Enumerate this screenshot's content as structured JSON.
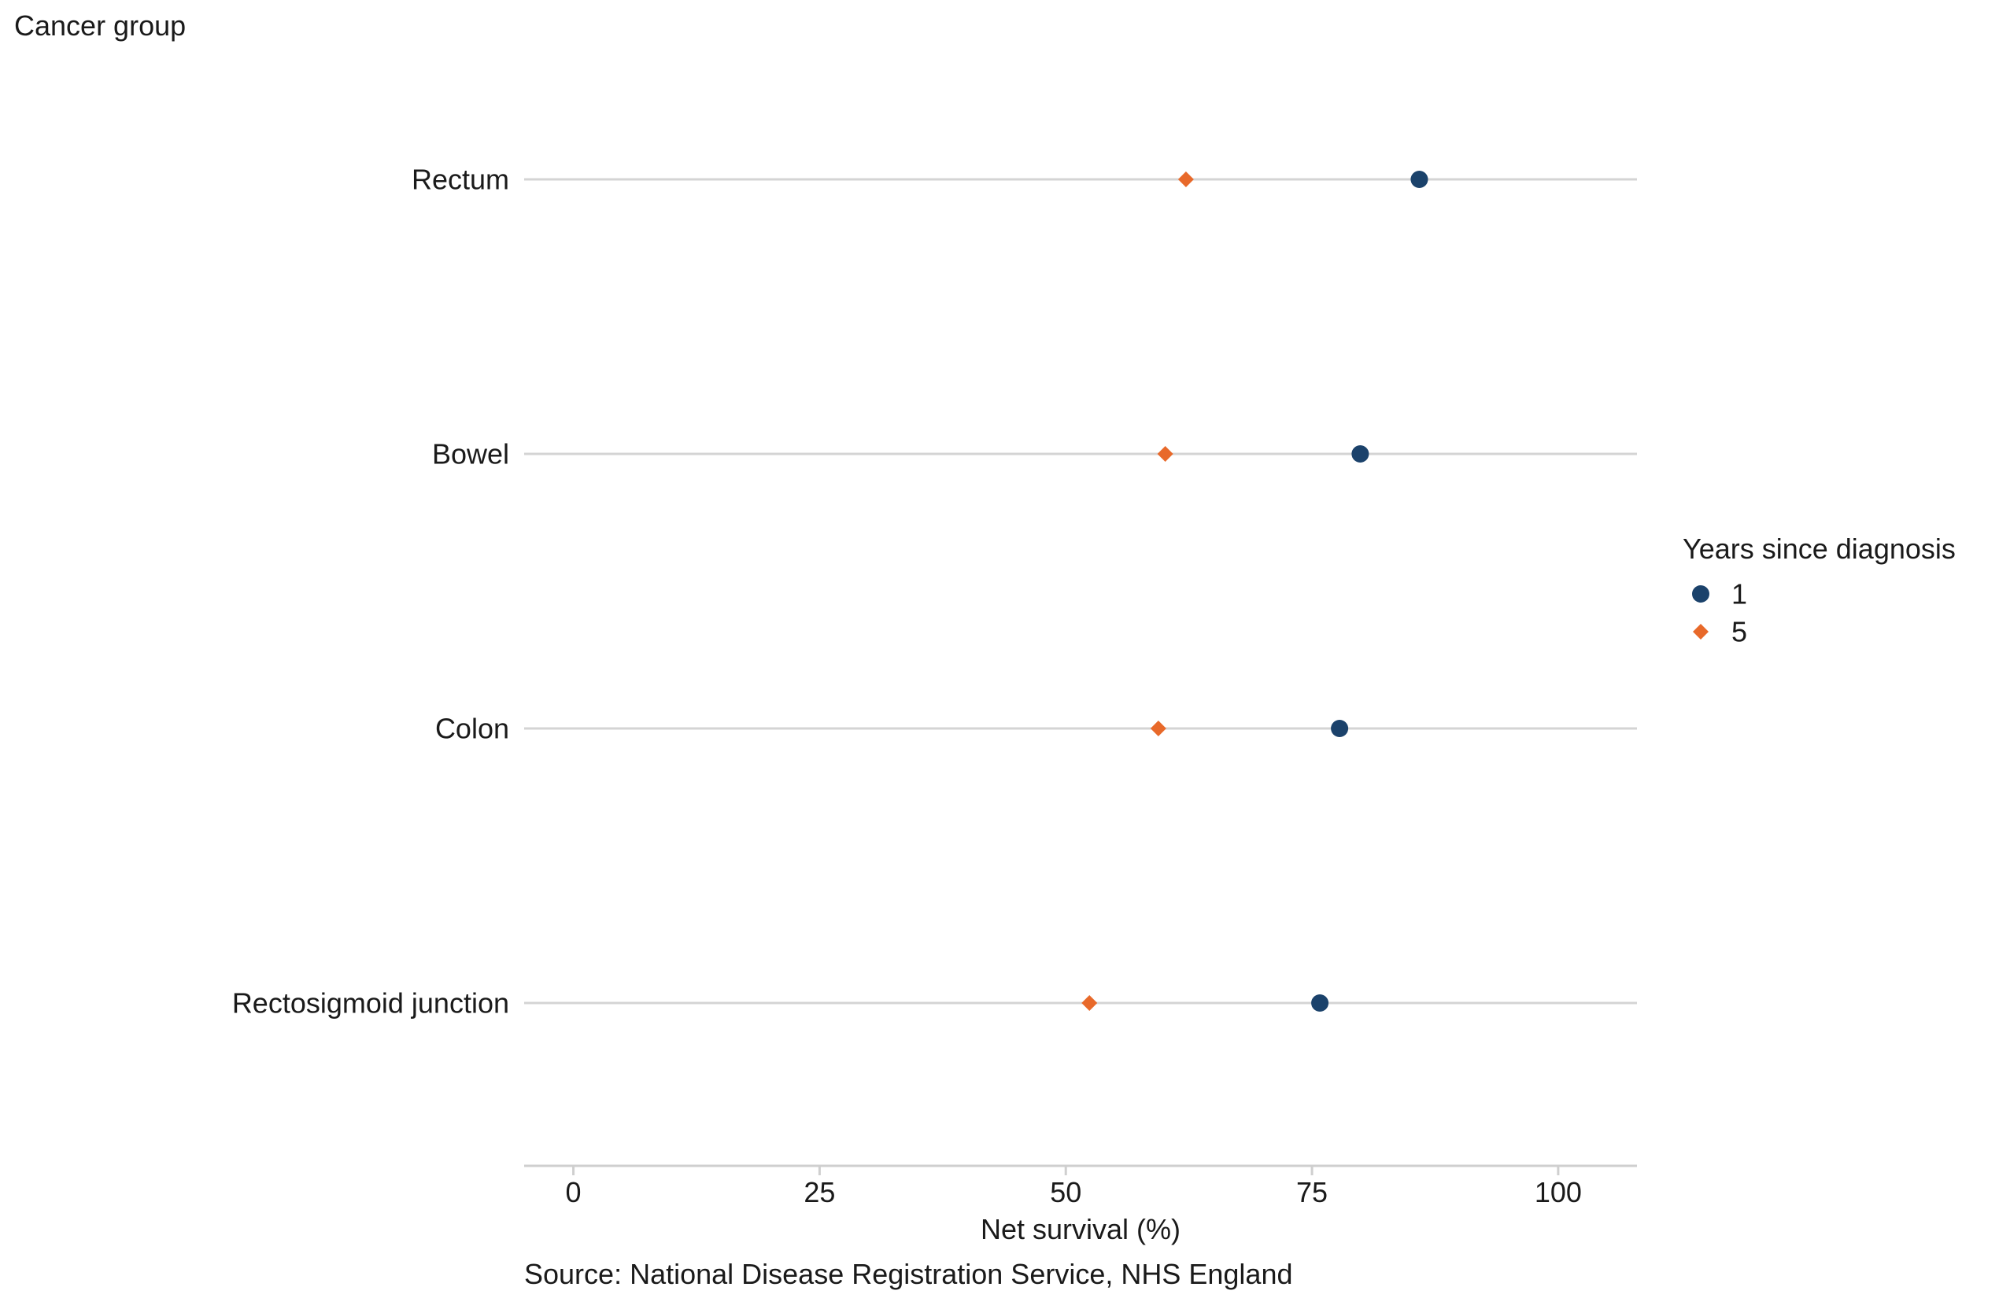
{
  "chart_data": {
    "type": "scatter",
    "subtype": "dot-plot",
    "ylabel": "Cancer group",
    "xlabel": "Net survival (%)",
    "caption": "Source: National Disease Registration Service, NHS England",
    "categories": [
      "Rectum",
      "Bowel",
      "Colon",
      "Rectosigmoid junction"
    ],
    "x_ticks": [
      0,
      25,
      50,
      75,
      100
    ],
    "xlim": [
      -5,
      108
    ],
    "grid": "horizontal category lines",
    "legend": {
      "title": "Years since diagnosis",
      "placement": "right"
    },
    "series": [
      {
        "name": "1",
        "marker": "circle",
        "color": "#1b426b",
        "values": [
          85.9,
          79.9,
          77.8,
          75.8
        ]
      },
      {
        "name": "5",
        "marker": "diamond",
        "color": "#e8692a",
        "values": [
          62.2,
          60.1,
          59.4,
          52.4
        ]
      }
    ],
    "colors": {
      "gridline": "#d4d4d4",
      "axis": "#cfcfcf",
      "text": "#1a1a1a"
    }
  }
}
